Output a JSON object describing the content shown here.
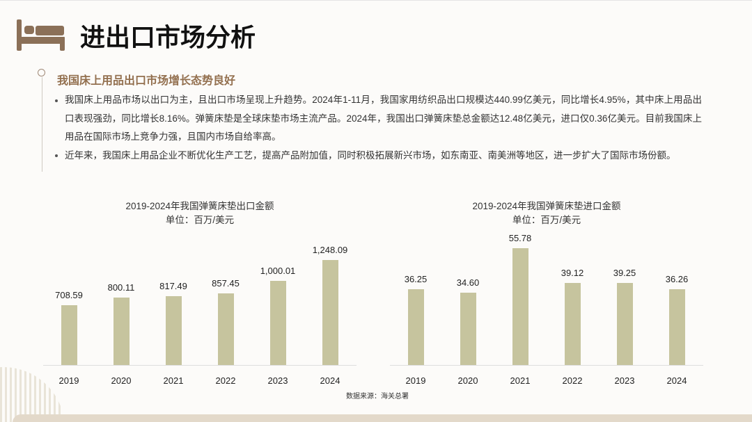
{
  "slide": {
    "icon": "bed-icon",
    "title": "进出口市场分析"
  },
  "section": {
    "heading": "我国床上用品出口市场增长态势良好",
    "bullets": [
      "我国床上用品市场以出口为主，且出口市场呈现上升趋势。2024年1-11月，我国家用纺织品出口规模达440.99亿美元，同比增长4.95%，其中床上用品出口表现强劲，同比增长8.16%。弹簧床垫是全球床垫市场主流产品。2024年，我国出口弹簧床垫总金额达12.48亿美元，进口仅0.36亿美元。目前我国床上用品在国际市场上竞争力强，且国内市场自给率高。",
      "近年来，我国床上用品企业不断优化生产工艺，提高产品附加值，同时积极拓展新兴市场，如东南亚、南美洲等地区，进一步扩大了国际市场份额。"
    ]
  },
  "colors": {
    "icon": "#8b7058",
    "heading": "#93704f",
    "text": "#333333",
    "title": "#111111"
  },
  "chart_data": [
    {
      "type": "bar",
      "title": "2019-2024年我国弹簧床垫出口金额",
      "subtitle": "单位：百万/美元",
      "categories": [
        "2019",
        "2020",
        "2021",
        "2022",
        "2023",
        "2024"
      ],
      "values": [
        708.59,
        800.11,
        817.49,
        857.45,
        1000.01,
        1248.09
      ],
      "value_labels": [
        "708.59",
        "800.11",
        "817.49",
        "857.45",
        "1,000.01",
        "1,248.09"
      ],
      "ylim": [
        0,
        1500
      ],
      "grid": false,
      "legend": false,
      "color": "#c6c49e"
    },
    {
      "type": "bar",
      "title": "2019-2024年我国弹簧床垫进口金额",
      "subtitle": "单位：百万/美元",
      "categories": [
        "2019",
        "2020",
        "2021",
        "2022",
        "2023",
        "2024"
      ],
      "values": [
        36.25,
        34.6,
        55.78,
        39.12,
        39.25,
        36.26
      ],
      "value_labels": [
        "36.25",
        "34.60",
        "55.78",
        "39.12",
        "39.25",
        "36.26"
      ],
      "ylim": [
        0,
        60
      ],
      "grid": false,
      "legend": false,
      "color": "#c6c49e"
    }
  ],
  "source": "数据来源：海关总署"
}
